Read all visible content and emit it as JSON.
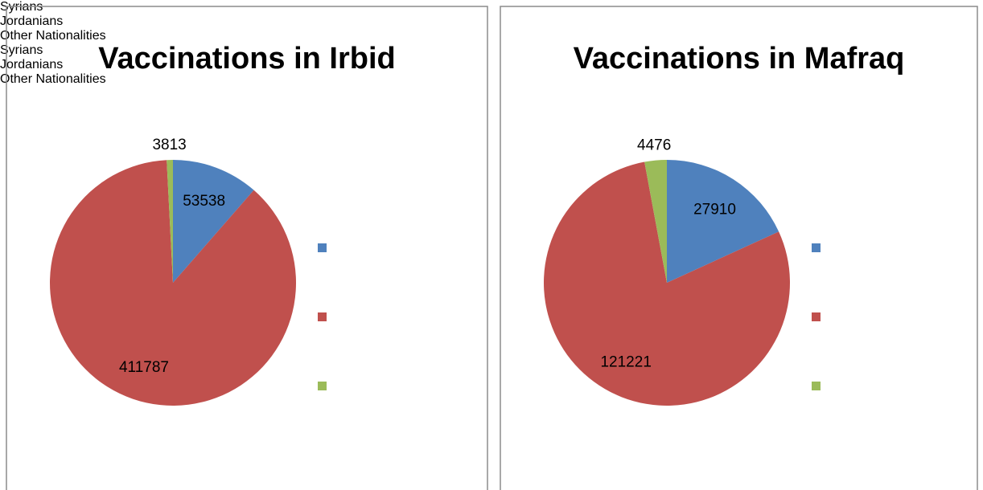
{
  "chart_data": [
    {
      "type": "pie",
      "title": "Vaccinations in Irbid",
      "categories": [
        "Syrians",
        "Jordanians",
        "Other Nationalities"
      ],
      "values": [
        53538,
        411787,
        3813
      ],
      "colors": [
        "#4f81bd",
        "#c0504d",
        "#9bbb59"
      ]
    },
    {
      "type": "pie",
      "title": "Vaccinations in Mafraq",
      "categories": [
        "Syrians",
        "Jordanians",
        "Other Nationalities"
      ],
      "values": [
        27910,
        121221,
        4476
      ],
      "colors": [
        "#4f81bd",
        "#c0504d",
        "#9bbb59"
      ]
    }
  ]
}
